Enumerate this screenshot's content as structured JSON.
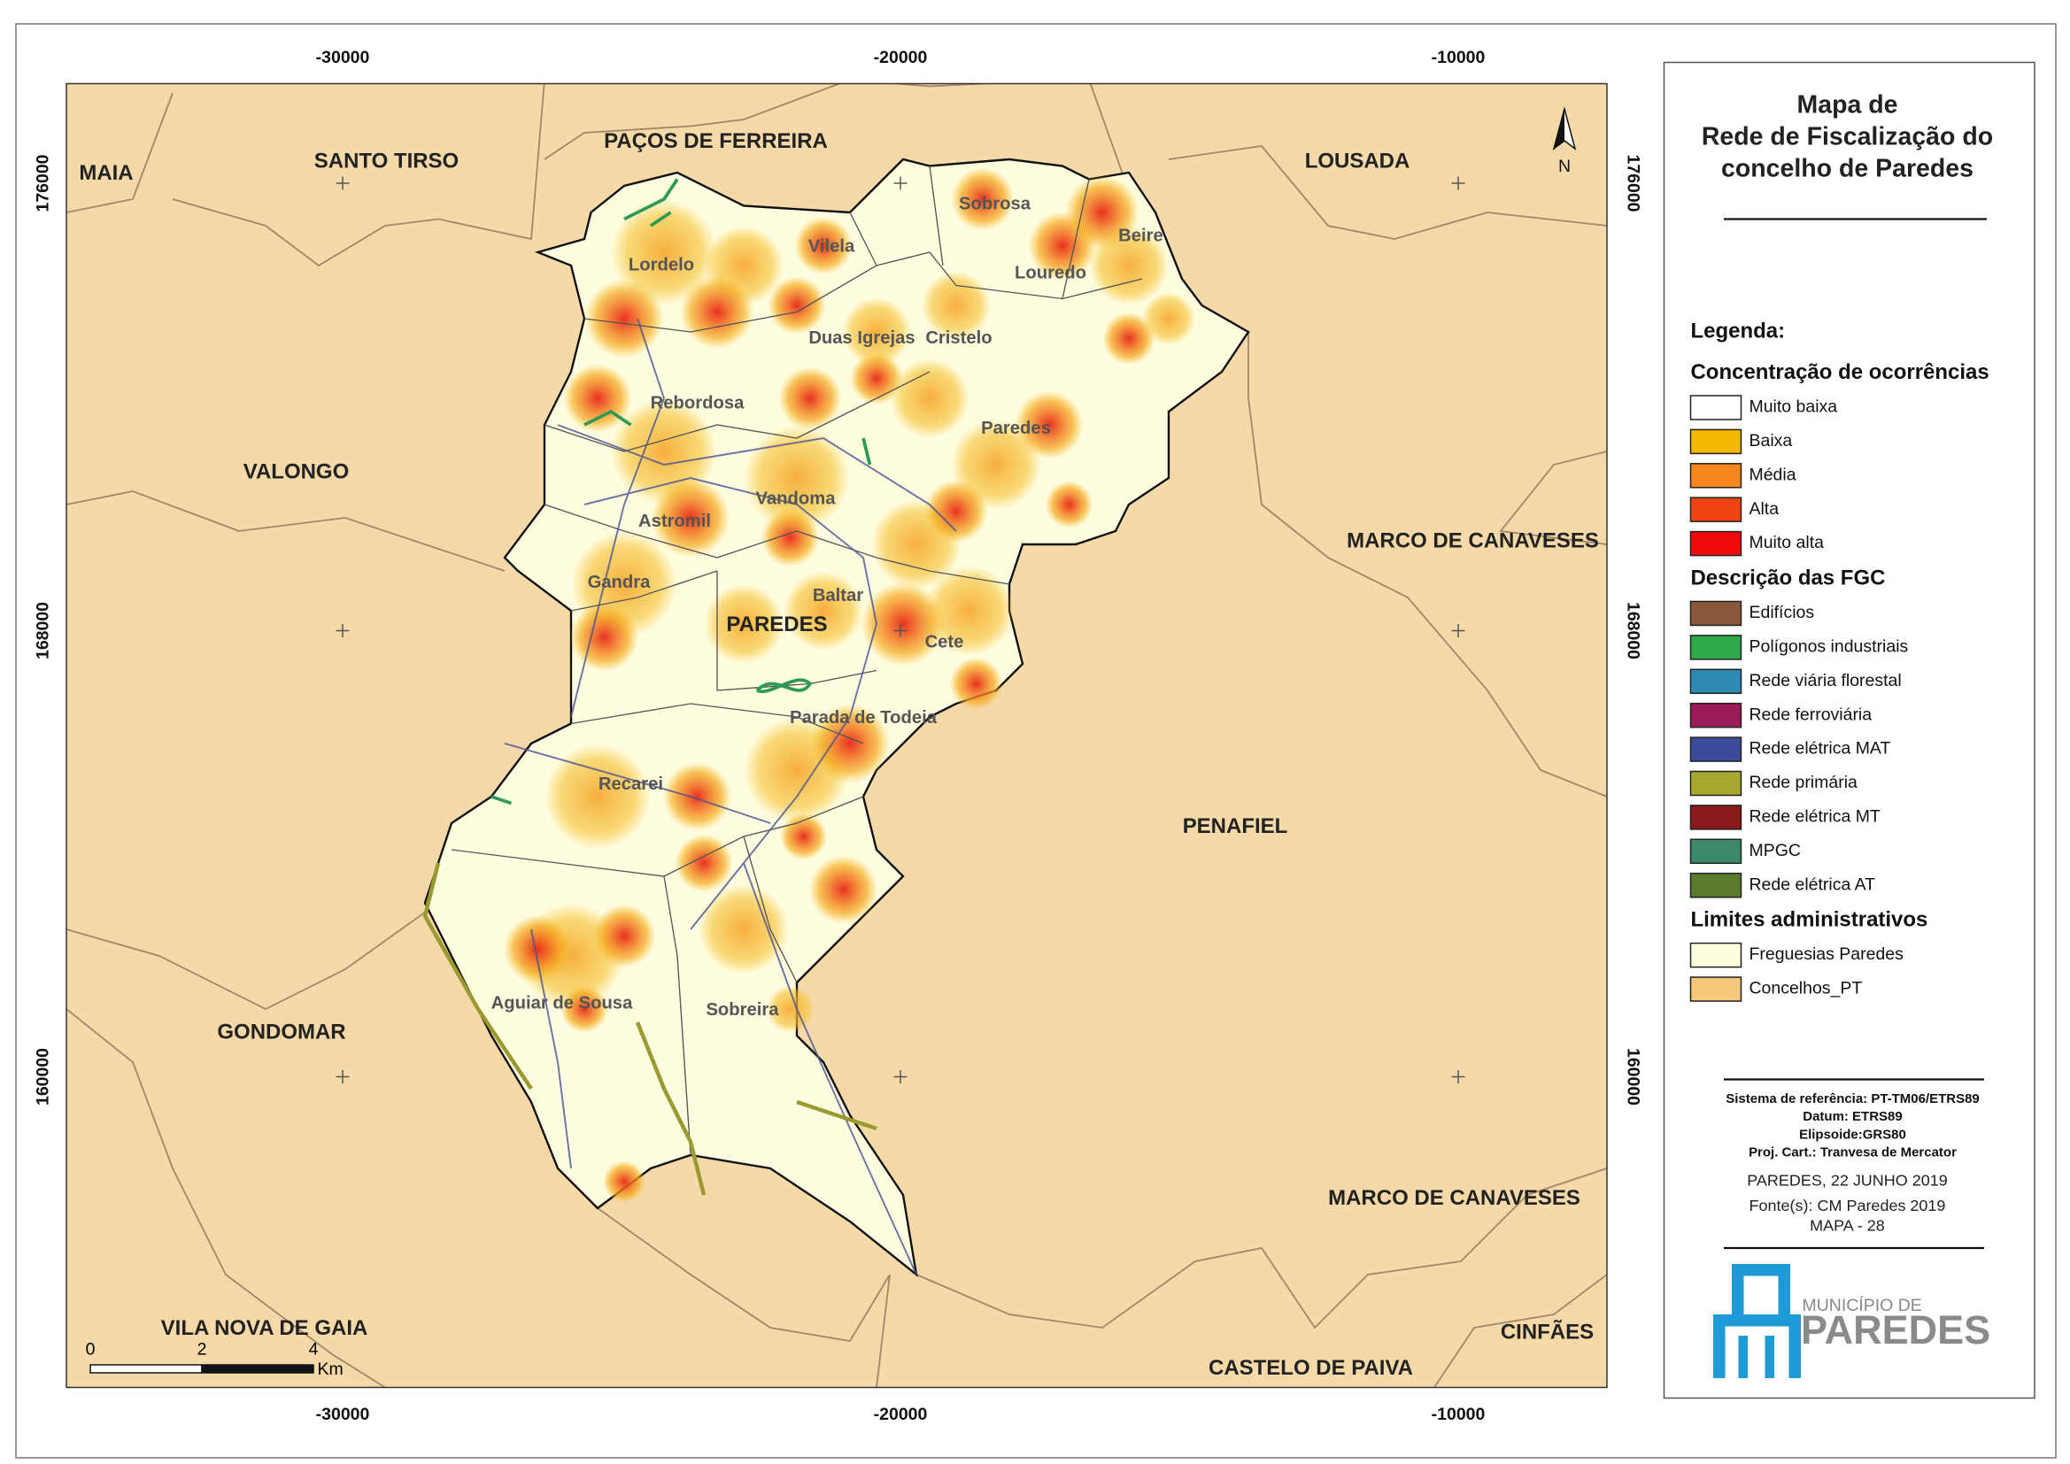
{
  "map": {
    "north": "N",
    "x_ticks": [
      -30000,
      -20000,
      -10000
    ],
    "y_ticks": [
      176000,
      168000,
      160000
    ],
    "regions": [
      "MAIA",
      "SANTO TIRSO",
      "PAÇOS DE FERREIRA",
      "LOUSADA",
      "VALONGO",
      "MARCO DE CANAVESES",
      "PENAFIEL",
      "GONDOMAR",
      "MARCO DE CANAVESES",
      "VILA NOVA DE GAIA",
      "CASTELO DE PAIVA",
      "CINFÃES",
      "PAREDES"
    ],
    "parishes": [
      "Lordelo",
      "Vilela",
      "Sobrosa",
      "Louredo",
      "Beire",
      "Duas Igrejas",
      "Cristelo",
      "Rebordosa",
      "Paredes",
      "Astromil",
      "Vandoma",
      "Gandra",
      "Baltar",
      "Cete",
      "Parada de Todeia",
      "Recarei",
      "Aguiar de Sousa",
      "Sobreira"
    ],
    "scale_bar": {
      "ticks": [
        0,
        2,
        4
      ],
      "unit": "Km"
    }
  },
  "legend": {
    "title": [
      "Mapa de",
      "Rede de Fiscalização do",
      "concelho de Paredes"
    ],
    "heading": "Legenda:",
    "groups": [
      {
        "title": "Concentração de ocorrências",
        "items": [
          {
            "label": "Muito baixa",
            "color": "#ffffff"
          },
          {
            "label": "Baixa",
            "color": "#f5b800"
          },
          {
            "label": "Média",
            "color": "#f5861e"
          },
          {
            "label": "Alta",
            "color": "#f04412"
          },
          {
            "label": "Muito alta",
            "color": "#f00a0a"
          }
        ]
      },
      {
        "title": "Descrição das FGC",
        "items": [
          {
            "label": "Edifícios",
            "color": "#8b5a3c"
          },
          {
            "label": "Polígonos industriais",
            "color": "#2ea84a"
          },
          {
            "label": "Rede viária florestal",
            "color": "#2e8bb5"
          },
          {
            "label": "Rede ferroviária",
            "color": "#9b1b5a"
          },
          {
            "label": "Rede elétrica MAT",
            "color": "#3d4c9a"
          },
          {
            "label": "Rede primária",
            "color": "#a8a82e"
          },
          {
            "label": "Rede elétrica MT",
            "color": "#8b1a1a"
          },
          {
            "label": "MPGC",
            "color": "#3a8a6a"
          },
          {
            "label": "Rede elétrica AT",
            "color": "#5a7a2e"
          }
        ]
      },
      {
        "title": "Limites administrativos",
        "items": [
          {
            "label": "Freguesias Paredes",
            "color": "#fffde0"
          },
          {
            "label": "Concelhos_PT",
            "color": "#f5c878"
          }
        ]
      }
    ]
  },
  "info": {
    "lines": [
      "Sistema de referência: PT-TM06/ETRS89",
      "Datum: ETRS89",
      "Elipsoide:GRS80",
      "Proj. Cart.: Tranvesa de Mercator"
    ],
    "date": "PAREDES, 22 JUNHO 2019",
    "source": "Fonte(s): CM Paredes 2019",
    "map_number": "MAPA - 28"
  },
  "logo": {
    "line1": "MUNICÍPIO DE",
    "line2": "PAREDES"
  }
}
